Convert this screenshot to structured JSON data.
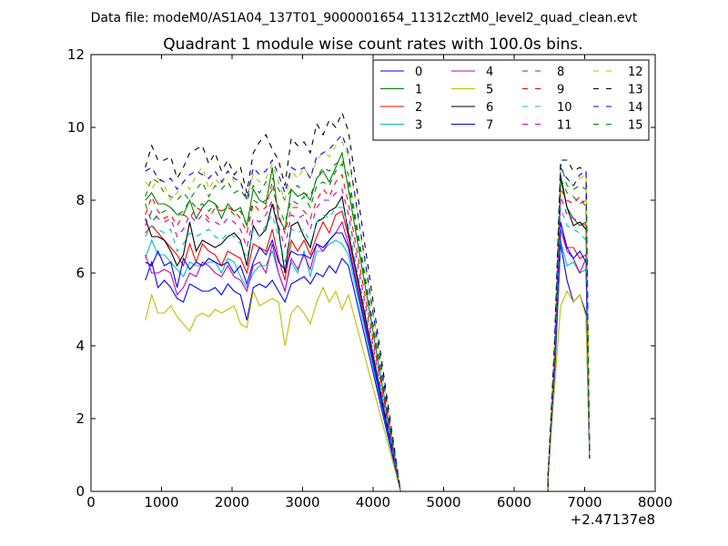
{
  "header": {
    "data_file": "Data file: modeM0/AS1A04_137T01_9000001654_11312cztM0_level2_quad_clean.evt"
  },
  "chart_data": {
    "type": "line",
    "title": "Quadrant 1 module wise count rates with 100.0s bins.",
    "xlabel": "",
    "ylabel": "",
    "xlim": [
      0,
      8000
    ],
    "ylim": [
      0,
      12
    ],
    "x_offset_label": "+2.47137e8",
    "x_ticks": [
      0,
      1000,
      2000,
      3000,
      4000,
      5000,
      6000,
      7000,
      8000
    ],
    "y_ticks": [
      0,
      2,
      4,
      6,
      8,
      10,
      12
    ],
    "x_tick_labels": [
      "0",
      "1000",
      "2000",
      "3000",
      "4000",
      "5000",
      "6000",
      "7000",
      "8000"
    ],
    "y_tick_labels": [
      "0",
      "2",
      "4",
      "6",
      "8",
      "10",
      "12"
    ],
    "legend_position": "top-right",
    "legend_columns": 4,
    "gap": {
      "start": 4390,
      "end": 6480
    },
    "x_seg1_start": 770,
    "x_seg1_step": 90,
    "x_seg2": [
      6480,
      6570,
      6660,
      6750,
      6840,
      6930,
      7020,
      7070
    ],
    "series": [
      {
        "name": "0",
        "color": "#0000ff",
        "dash": "solid",
        "seg1": [
          5.8,
          6.3,
          5.6,
          5.8,
          5.6,
          5.3,
          5.2,
          5.7,
          5.6,
          5.5,
          5.5,
          5.6,
          5.4,
          5.7,
          5.5,
          5.4,
          4.7,
          5.6,
          5.7,
          5.6,
          5.8,
          5.5,
          5.2,
          5.7,
          5.8,
          5.9,
          5.7,
          6.0,
          5.9,
          6.2,
          6.0,
          6.4,
          6.2
        ],
        "seg2": [
          0.4,
          3.0,
          6.8,
          5.8,
          5.2,
          5.4,
          4.9,
          0.9
        ]
      },
      {
        "name": "1",
        "color": "#008000",
        "dash": "solid",
        "seg1": [
          8.0,
          8.2,
          7.9,
          7.9,
          7.8,
          7.6,
          7.6,
          8.0,
          7.5,
          7.8,
          8.0,
          7.9,
          7.5,
          7.9,
          7.7,
          7.8,
          7.3,
          8.3,
          8.0,
          7.9,
          8.9,
          7.5,
          7.2,
          8.3,
          8.1,
          8.2,
          8.0,
          8.6,
          8.8,
          8.5,
          8.9,
          9.3,
          8.3
        ],
        "seg2": [
          0.4,
          3.3,
          8.7,
          7.8,
          7.5,
          7.3,
          7.4,
          0.9
        ]
      },
      {
        "name": "2",
        "color": "#ff0000",
        "dash": "solid",
        "seg1": [
          7.1,
          7.3,
          7.1,
          6.9,
          6.7,
          6.5,
          6.2,
          6.8,
          6.3,
          6.8,
          6.6,
          6.5,
          6.2,
          6.6,
          6.5,
          6.4,
          6.0,
          6.8,
          6.7,
          6.6,
          7.2,
          6.4,
          5.8,
          6.9,
          6.6,
          6.9,
          6.5,
          7.0,
          7.4,
          7.1,
          7.6,
          7.7,
          7.0
        ],
        "seg2": [
          0.4,
          3.2,
          7.2,
          6.7,
          6.7,
          6.4,
          6.5,
          0.9
        ]
      },
      {
        "name": "3",
        "color": "#00bfbf",
        "dash": "solid",
        "seg1": [
          6.4,
          6.9,
          6.5,
          6.5,
          6.3,
          6.1,
          5.9,
          6.3,
          6.2,
          6.2,
          6.3,
          6.3,
          6.0,
          6.4,
          6.3,
          5.9,
          5.6,
          6.0,
          6.2,
          6.2,
          6.6,
          6.0,
          5.5,
          6.3,
          6.0,
          6.6,
          5.9,
          6.6,
          6.6,
          6.8,
          6.9,
          6.8,
          6.5
        ],
        "seg2": [
          0.4,
          3.1,
          6.9,
          6.2,
          6.3,
          6.0,
          6.1,
          0.9
        ]
      },
      {
        "name": "4",
        "color": "#bf00bf",
        "dash": "solid",
        "seg1": [
          6.5,
          6.0,
          6.0,
          6.1,
          6.0,
          5.4,
          5.6,
          6.0,
          5.9,
          6.3,
          6.2,
          6.0,
          5.9,
          6.2,
          5.9,
          5.8,
          5.5,
          6.2,
          6.3,
          6.0,
          6.8,
          6.0,
          5.5,
          6.4,
          6.1,
          6.5,
          6.1,
          6.8,
          6.6,
          6.9,
          7.1,
          7.4,
          6.8
        ],
        "seg2": [
          0.4,
          3.1,
          7.2,
          6.6,
          6.4,
          6.0,
          6.4,
          0.9
        ]
      },
      {
        "name": "5",
        "color": "#bfbf00",
        "dash": "solid",
        "seg1": [
          4.7,
          5.4,
          4.9,
          4.9,
          5.1,
          4.8,
          4.6,
          4.4,
          4.8,
          4.9,
          4.8,
          5.0,
          4.9,
          5.0,
          5.1,
          4.6,
          4.5,
          5.5,
          5.1,
          5.2,
          5.3,
          5.2,
          4.0,
          4.9,
          5.1,
          4.9,
          4.6,
          5.2,
          5.6,
          5.2,
          5.5,
          5.0,
          5.4
        ],
        "seg2": [
          0.4,
          2.8,
          5.1,
          5.5,
          5.2,
          5.4,
          4.8,
          0.9
        ]
      },
      {
        "name": "6",
        "color": "#000000",
        "dash": "solid",
        "seg1": [
          7.5,
          7.0,
          7.0,
          6.9,
          6.6,
          6.2,
          6.5,
          7.4,
          6.6,
          6.9,
          6.8,
          6.7,
          6.8,
          7.0,
          7.1,
          6.9,
          6.2,
          7.3,
          7.0,
          7.2,
          7.9,
          7.2,
          6.0,
          7.3,
          7.4,
          7.0,
          6.7,
          7.4,
          7.5,
          7.7,
          7.8,
          8.1,
          7.1
        ],
        "seg2": [
          0.4,
          3.4,
          8.6,
          7.8,
          7.3,
          7.4,
          7.2,
          0.9
        ]
      },
      {
        "name": "7",
        "color": "#0000ff",
        "dash": "solid",
        "seg1": [
          6.3,
          6.2,
          6.6,
          6.2,
          6.3,
          5.6,
          6.4,
          6.1,
          6.3,
          6.2,
          6.4,
          6.3,
          6.2,
          6.3,
          6.0,
          6.2,
          5.7,
          6.3,
          6.7,
          6.5,
          6.9,
          6.3,
          6.1,
          6.6,
          6.5,
          6.5,
          6.4,
          6.8,
          6.7,
          6.9,
          7.1,
          7.1,
          6.7
        ],
        "seg2": [
          0.4,
          3.2,
          7.4,
          6.7,
          6.4,
          6.6,
          6.3,
          0.9
        ]
      },
      {
        "name": "8",
        "color": "#008000",
        "dash": "dashed",
        "seg1": [
          8.1,
          8.6,
          8.5,
          8.2,
          8.1,
          8.0,
          8.2,
          8.0,
          8.3,
          8.5,
          8.1,
          8.4,
          8.3,
          8.5,
          8.2,
          8.3,
          8.0,
          8.4,
          8.2,
          8.5,
          8.6,
          8.3,
          8.0,
          8.3,
          8.4,
          8.2,
          8.1,
          8.6,
          8.9,
          8.8,
          9.0,
          9.1,
          8.7
        ],
        "seg2": [
          0.4,
          3.7,
          9.0,
          8.4,
          8.3,
          8.4,
          8.3,
          0.9
        ]
      },
      {
        "name": "9",
        "color": "#ff0000",
        "dash": "dashed",
        "seg1": [
          7.6,
          8.1,
          7.7,
          7.5,
          7.6,
          7.3,
          7.6,
          7.5,
          7.8,
          7.7,
          7.5,
          7.8,
          7.7,
          7.8,
          7.7,
          7.5,
          7.1,
          7.9,
          7.7,
          7.8,
          8.5,
          7.6,
          7.1,
          7.8,
          7.8,
          7.7,
          7.5,
          8.0,
          8.3,
          8.1,
          8.5,
          8.7,
          7.9
        ],
        "seg2": [
          0.4,
          3.5,
          8.3,
          8.0,
          7.9,
          8.1,
          7.8,
          0.9
        ]
      },
      {
        "name": "10",
        "color": "#00bfbf",
        "dash": "dashed",
        "seg1": [
          7.0,
          7.3,
          7.2,
          7.1,
          7.2,
          6.6,
          6.8,
          7.1,
          7.0,
          7.1,
          7.2,
          7.0,
          6.9,
          7.1,
          7.0,
          6.8,
          6.4,
          7.2,
          7.0,
          7.3,
          7.6,
          7.0,
          6.3,
          7.2,
          7.1,
          7.2,
          6.8,
          7.4,
          7.6,
          7.5,
          7.8,
          7.8,
          7.3
        ],
        "seg2": [
          0.4,
          3.3,
          7.8,
          7.3,
          7.2,
          7.1,
          6.9,
          0.9
        ]
      },
      {
        "name": "11",
        "color": "#bf00bf",
        "dash": "dashed",
        "seg1": [
          7.3,
          7.7,
          7.5,
          7.4,
          7.5,
          7.0,
          7.2,
          7.6,
          7.4,
          7.6,
          7.4,
          7.4,
          7.3,
          7.5,
          7.4,
          7.2,
          6.7,
          7.5,
          7.4,
          7.6,
          8.0,
          7.3,
          6.7,
          7.6,
          7.5,
          7.6,
          7.2,
          7.8,
          8.0,
          8.0,
          8.2,
          8.3,
          7.6
        ],
        "seg2": [
          0.4,
          3.4,
          8.1,
          7.6,
          7.5,
          7.4,
          7.3,
          0.9
        ]
      },
      {
        "name": "12",
        "color": "#bfbf00",
        "dash": "dashed",
        "seg1": [
          8.5,
          8.3,
          8.6,
          8.4,
          8.0,
          8.2,
          8.5,
          8.3,
          8.7,
          8.9,
          8.3,
          8.6,
          8.4,
          8.8,
          8.5,
          8.5,
          8.1,
          8.7,
          8.5,
          8.6,
          9.0,
          8.5,
          8.0,
          8.8,
          8.6,
          8.9,
          8.6,
          9.1,
          9.3,
          9.2,
          9.5,
          9.6,
          9.2
        ],
        "seg2": [
          0.4,
          3.8,
          8.8,
          8.6,
          8.4,
          8.6,
          8.7,
          0.9
        ]
      },
      {
        "name": "13",
        "color": "#000000",
        "dash": "dashed",
        "seg1": [
          8.9,
          9.5,
          9.1,
          9.1,
          9.2,
          8.6,
          8.9,
          9.3,
          9.4,
          9.5,
          9.0,
          9.3,
          8.8,
          9.1,
          8.7,
          8.9,
          8.2,
          9.3,
          9.6,
          9.8,
          9.4,
          9.1,
          8.4,
          9.7,
          9.5,
          9.6,
          9.3,
          10.1,
          9.8,
          10.2,
          10.0,
          10.4,
          9.9
        ],
        "seg2": [
          0.4,
          4.0,
          9.1,
          9.1,
          8.8,
          8.9,
          8.8,
          0.9
        ]
      },
      {
        "name": "14",
        "color": "#0000ff",
        "dash": "dashed",
        "seg1": [
          8.8,
          8.9,
          8.6,
          8.5,
          8.6,
          8.3,
          8.5,
          8.7,
          8.8,
          8.7,
          8.6,
          8.8,
          8.5,
          8.8,
          8.6,
          8.5,
          8.0,
          8.9,
          8.7,
          8.8,
          9.1,
          8.7,
          8.2,
          8.9,
          8.8,
          8.9,
          8.6,
          9.2,
          9.3,
          9.4,
          9.6,
          9.8,
          9.3
        ],
        "seg2": [
          0.4,
          3.8,
          8.9,
          8.6,
          8.4,
          8.7,
          8.8,
          0.9
        ]
      },
      {
        "name": "15",
        "color": "#008000",
        "dash": "dashed",
        "seg1": [
          7.9,
          7.4,
          7.6,
          7.7,
          7.8,
          7.6,
          7.7,
          8.0,
          7.8,
          7.9,
          7.7,
          7.9,
          7.7,
          7.8,
          7.6,
          7.7,
          7.3,
          8.0,
          7.9,
          8.0,
          8.3,
          7.8,
          7.4,
          8.0,
          7.9,
          8.1,
          7.8,
          8.4,
          8.5,
          8.4,
          8.8,
          9.0,
          8.5
        ],
        "seg2": [
          0.4,
          3.6,
          8.6,
          8.2,
          8.1,
          7.9,
          8.0,
          0.9
        ]
      }
    ]
  }
}
